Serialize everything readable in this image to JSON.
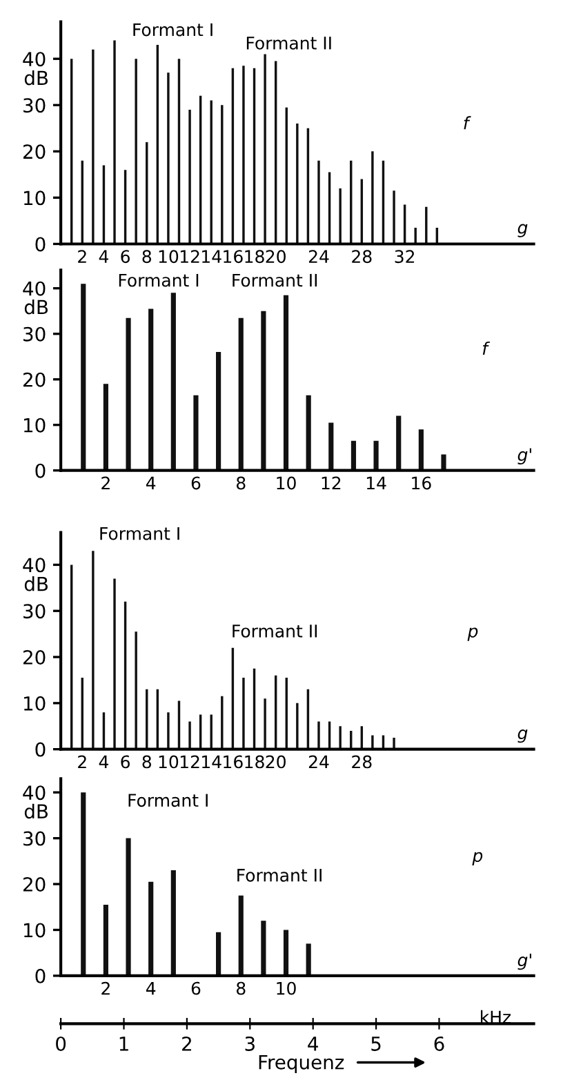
{
  "chart_data": [
    {
      "type": "bar",
      "ylabel": "dB",
      "color": "#111111",
      "grid": false,
      "x": [
        1,
        2,
        3,
        4,
        5,
        6,
        7,
        8,
        9,
        10,
        11,
        12,
        13,
        14,
        15,
        16,
        17,
        18,
        19,
        20,
        21,
        22,
        23,
        24,
        25,
        26,
        27,
        28,
        29,
        30,
        31,
        32,
        33,
        34,
        35
      ],
      "values": [
        40,
        18,
        42,
        17,
        44,
        16,
        40,
        22,
        43,
        37,
        40,
        29,
        32,
        31,
        30,
        38,
        38.5,
        38,
        41,
        39.5,
        29.5,
        26,
        25,
        18,
        15.5,
        12,
        18,
        14,
        20,
        18,
        11.5,
        8.5,
        3.5,
        8,
        3.5
      ],
      "xlim": [
        0,
        44
      ],
      "xticks": [
        2,
        4,
        6,
        8,
        10,
        12,
        14,
        16,
        18,
        20,
        24,
        28,
        32
      ],
      "ylim": [
        0,
        48
      ],
      "yticks": [
        0,
        10,
        20,
        30,
        40
      ],
      "annotations": [
        "Formant I",
        "Formant II",
        "f",
        "g"
      ]
    },
    {
      "type": "bar",
      "ylabel": "dB",
      "color": "#111111",
      "grid": false,
      "x": [
        1,
        2,
        3,
        4,
        5,
        6,
        7,
        8,
        9,
        10,
        11,
        12,
        13,
        14,
        15,
        16,
        17
      ],
      "values": [
        41,
        19,
        33.5,
        35.5,
        39,
        16.5,
        26,
        33.5,
        35,
        38.5,
        16.5,
        10.5,
        6.5,
        6.5,
        12,
        9,
        3.5
      ],
      "xlim": [
        0,
        21
      ],
      "xticks": [
        2,
        4,
        6,
        8,
        10,
        12,
        14,
        16
      ],
      "ylim": [
        0,
        44
      ],
      "yticks": [
        0,
        10,
        20,
        30,
        40
      ],
      "annotations": [
        "Formant I",
        "Formant II",
        "f",
        "g'"
      ]
    },
    {
      "type": "bar",
      "ylabel": "dB",
      "color": "#111111",
      "grid": false,
      "x": [
        1,
        2,
        3,
        4,
        5,
        6,
        7,
        8,
        9,
        10,
        11,
        12,
        13,
        14,
        15,
        16,
        17,
        18,
        19,
        20,
        21,
        22,
        23,
        24,
        25,
        26,
        27,
        28,
        29,
        30,
        31
      ],
      "values": [
        40,
        15.5,
        43,
        8,
        37,
        32,
        25.5,
        13,
        13,
        8,
        10.5,
        6,
        7.5,
        7.5,
        11.5,
        22,
        15.5,
        17.5,
        11,
        16,
        15.5,
        10,
        13,
        6,
        6,
        5,
        4,
        5,
        3,
        3,
        2.5
      ],
      "xlim": [
        0,
        44
      ],
      "xticks": [
        2,
        4,
        6,
        8,
        10,
        12,
        14,
        16,
        18,
        20,
        24,
        28
      ],
      "ylim": [
        0,
        47
      ],
      "yticks": [
        0,
        10,
        20,
        30,
        40
      ],
      "annotations": [
        "Formant I",
        "Formant II",
        "p",
        "g"
      ]
    },
    {
      "type": "bar",
      "ylabel": "dB",
      "color": "#111111",
      "grid": false,
      "x": [
        1,
        2,
        3,
        4,
        5,
        7,
        8,
        9,
        10,
        11
      ],
      "values": [
        40,
        15.5,
        30,
        20.5,
        23,
        9.5,
        17.5,
        12,
        10,
        7
      ],
      "xlim": [
        0,
        21
      ],
      "xticks": [
        2,
        4,
        6,
        8,
        10
      ],
      "ylim": [
        0,
        43
      ],
      "yticks": [
        0,
        10,
        20,
        30,
        40
      ],
      "x2lim": [
        0,
        7.5
      ],
      "x2ticks": [
        0,
        1,
        2,
        3,
        4,
        5,
        6
      ],
      "x2label": "Frequenz",
      "annotations": [
        "Formant I",
        "Formant II",
        "p",
        "g'",
        "kHz"
      ]
    }
  ]
}
